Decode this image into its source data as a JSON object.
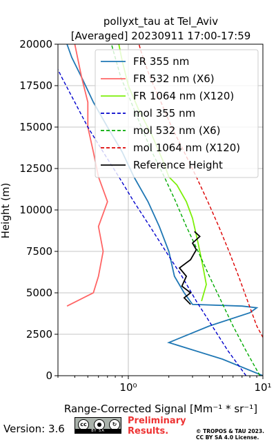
{
  "chart_data": {
    "type": "line",
    "title_line1": "pollyxt_tau at Tel_Aviv",
    "title_line2": "[Averaged] 20230911 17:00-17:59",
    "xlabel": "Range-Corrected Signal [Mm⁻¹ * sr⁻¹]",
    "ylabel": "Height (m)",
    "xscale": "log",
    "xlim": [
      0.3,
      10
    ],
    "ylim": [
      0,
      20000
    ],
    "xticks": [
      {
        "v": 1,
        "label": "10⁰"
      },
      {
        "v": 10,
        "label": "10¹"
      }
    ],
    "yticks": [
      0,
      2500,
      5000,
      7500,
      10000,
      12500,
      15000,
      17500,
      20000
    ],
    "grid": true,
    "legend_position": "top-right",
    "series": [
      {
        "name": "FR 355 nm",
        "color": "#1f77b4",
        "style": "solid",
        "points": [
          [
            10,
            0
          ],
          [
            5,
            1000
          ],
          [
            2,
            2000
          ],
          [
            4,
            3000
          ],
          [
            8,
            3800
          ],
          [
            9,
            4100
          ],
          [
            7,
            4200
          ],
          [
            3,
            4300
          ],
          [
            2.6,
            5000
          ],
          [
            2.2,
            6000
          ],
          [
            2.0,
            7500
          ],
          [
            1.7,
            9000
          ],
          [
            1.4,
            10500
          ],
          [
            1.1,
            12000
          ],
          [
            0.9,
            13500
          ],
          [
            0.7,
            15000
          ],
          [
            0.55,
            16500
          ],
          [
            0.45,
            18000
          ],
          [
            0.38,
            19200
          ],
          [
            0.35,
            20000
          ]
        ]
      },
      {
        "name": "FR 532 nm (X6)",
        "color": "#ff6464",
        "style": "solid",
        "points": [
          [
            0.35,
            4200
          ],
          [
            0.55,
            5000
          ],
          [
            0.6,
            6000
          ],
          [
            0.65,
            7500
          ],
          [
            0.6,
            9000
          ],
          [
            0.7,
            10500
          ],
          [
            0.6,
            12000
          ],
          [
            0.55,
            13500
          ],
          [
            0.5,
            15000
          ],
          [
            0.5,
            16500
          ],
          [
            0.45,
            18000
          ],
          [
            0.4,
            20000
          ]
        ]
      },
      {
        "name": "FR 1064 nm (X120)",
        "color": "#7df00a",
        "style": "solid",
        "points": [
          [
            3.5,
            4500
          ],
          [
            3.8,
            5500
          ],
          [
            3.6,
            6500
          ],
          [
            3.3,
            8000
          ],
          [
            3.0,
            9500
          ],
          [
            2.7,
            10500
          ],
          [
            2.3,
            11500
          ],
          [
            2.0,
            12000
          ],
          [
            1.8,
            13000
          ],
          [
            1.5,
            14500
          ],
          [
            1.2,
            16000
          ],
          [
            1.0,
            17500
          ],
          [
            0.9,
            19000
          ],
          [
            0.85,
            20000
          ]
        ]
      },
      {
        "name": "mol 355 nm",
        "color": "#0000cc",
        "style": "dashed",
        "points": [
          [
            7.5,
            0
          ],
          [
            5.5,
            1500
          ],
          [
            4.2,
            3000
          ],
          [
            3.2,
            4500
          ],
          [
            2.5,
            6000
          ],
          [
            1.9,
            7500
          ],
          [
            1.45,
            9000
          ],
          [
            1.1,
            10500
          ],
          [
            0.85,
            12000
          ],
          [
            0.65,
            13500
          ],
          [
            0.5,
            15000
          ],
          [
            0.4,
            16500
          ],
          [
            0.32,
            18000
          ],
          [
            0.26,
            19500
          ]
        ]
      },
      {
        "name": "mol 532 nm (X6)",
        "color": "#00aa00",
        "style": "dashed",
        "points": [
          [
            9.5,
            0
          ],
          [
            7.5,
            1500
          ],
          [
            6.0,
            3000
          ],
          [
            4.9,
            4500
          ],
          [
            4.0,
            6000
          ],
          [
            3.3,
            7500
          ],
          [
            2.7,
            9000
          ],
          [
            2.25,
            10500
          ],
          [
            1.85,
            12000
          ],
          [
            1.5,
            13500
          ],
          [
            1.25,
            15000
          ],
          [
            1.05,
            16500
          ],
          [
            0.88,
            18000
          ],
          [
            0.78,
            19500
          ],
          [
            0.75,
            20000
          ]
        ]
      },
      {
        "name": "mol 1064 nm (X120)",
        "color": "#dd0000",
        "style": "dashed",
        "points": [
          [
            10.5,
            2000
          ],
          [
            9.0,
            3000
          ],
          [
            7.7,
            4500
          ],
          [
            6.6,
            6000
          ],
          [
            5.6,
            7500
          ],
          [
            4.7,
            9000
          ],
          [
            3.9,
            10500
          ],
          [
            3.2,
            12000
          ],
          [
            2.6,
            13500
          ],
          [
            2.1,
            15000
          ],
          [
            1.75,
            16500
          ],
          [
            1.45,
            18000
          ],
          [
            1.25,
            19500
          ],
          [
            1.2,
            20000
          ]
        ]
      },
      {
        "name": "Reference Height",
        "color": "#000000",
        "style": "solid",
        "points": [
          [
            2.9,
            4300
          ],
          [
            2.6,
            4700
          ],
          [
            2.9,
            5000
          ],
          [
            2.5,
            5400
          ],
          [
            2.7,
            6000
          ],
          [
            2.4,
            6500
          ],
          [
            2.9,
            7000
          ],
          [
            3.2,
            7600
          ],
          [
            3.0,
            8000
          ],
          [
            3.4,
            8400
          ],
          [
            3.1,
            8700
          ]
        ]
      }
    ]
  },
  "footer": {
    "version": "Version: 3.6",
    "badge_text": "BY   SA",
    "preliminary_line1": "Preliminary",
    "preliminary_line2": "Results.",
    "license_line1": "© TROPOS & TAU 2023.",
    "license_line2": "CC BY SA 4.0 License."
  },
  "colors": {
    "preliminary": "#ee3333"
  }
}
